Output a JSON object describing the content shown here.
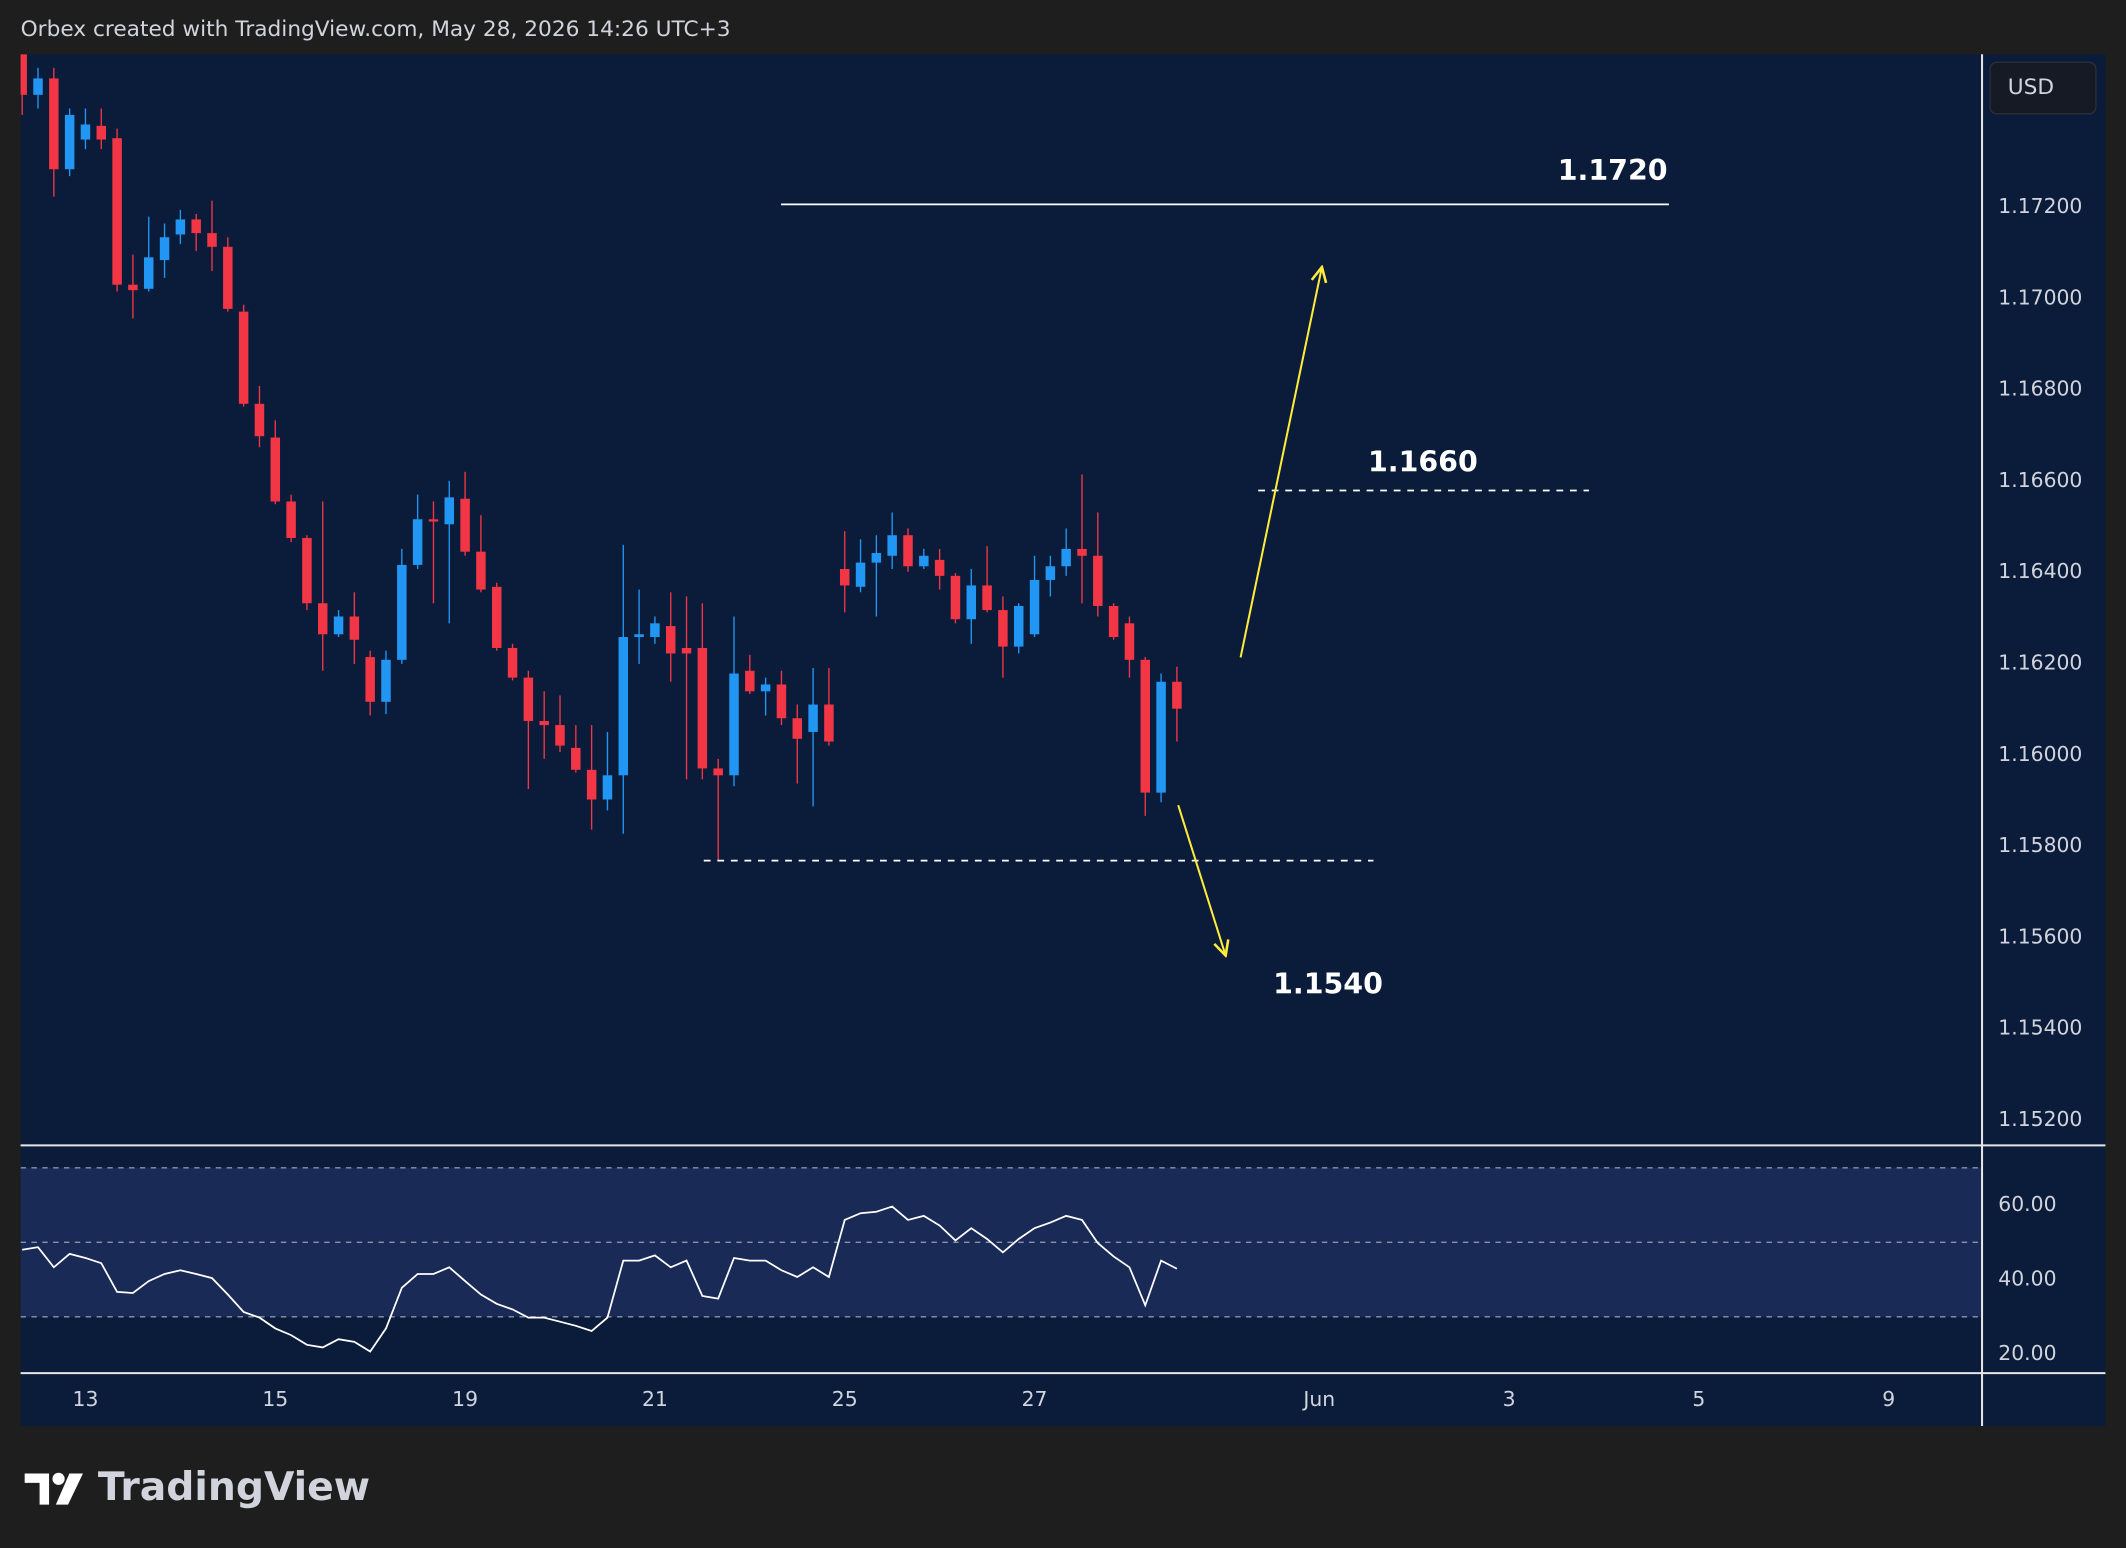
{
  "header": {
    "credit": "Orbex created with TradingView.com, May 28, 2026 14:26 UTC+3",
    "logo": "TradingView"
  },
  "chart_data": [
    {
      "type": "candlestick",
      "currency": "USD",
      "up_color": "#2196f3",
      "down_color": "#f23645",
      "xlim": [
        -0.1,
        123.9
      ],
      "ylim": [
        1.15144,
        1.17535
      ],
      "yticks": [
        {
          "value": 1.172,
          "label": "1.17200"
        },
        {
          "value": 1.17,
          "label": "1.17000"
        },
        {
          "value": 1.168,
          "label": "1.16800"
        },
        {
          "value": 1.166,
          "label": "1.16600"
        },
        {
          "value": 1.164,
          "label": "1.16400"
        },
        {
          "value": 1.162,
          "label": "1.16200"
        },
        {
          "value": 1.16,
          "label": "1.16000"
        },
        {
          "value": 1.158,
          "label": "1.15800"
        },
        {
          "value": 1.156,
          "label": "1.15600"
        },
        {
          "value": 1.154,
          "label": "1.15400"
        },
        {
          "value": 1.152,
          "label": "1.15200"
        }
      ],
      "levels": [
        {
          "value": 1.17206,
          "style": "solid"
        },
        {
          "value": 1.16579,
          "style": "dashed"
        },
        {
          "value": 1.15768,
          "style": "dashed"
        }
      ],
      "annotations": [
        "1.1720",
        "1.1660",
        "1.1540"
      ],
      "open": [
        1.17535,
        1.17446,
        1.17482,
        1.17283,
        1.17348,
        1.17378,
        1.17351,
        1.1703,
        1.17021,
        1.17084,
        1.1714,
        1.17173,
        1.17143,
        1.17113,
        1.16971,
        1.16769,
        1.16695,
        1.16555,
        1.16475,
        1.16332,
        1.16264,
        1.16303,
        1.16214,
        1.16116,
        1.16208,
        1.16416,
        1.16516,
        1.16505,
        1.16561,
        1.16445,
        1.16368,
        1.16234,
        1.16169,
        1.16074,
        1.16065,
        1.16015,
        1.15967,
        1.15902,
        1.15955,
        1.16258,
        1.16258,
        1.16282,
        1.16234,
        1.16234,
        1.1597,
        1.15955,
        1.16184,
        1.16139,
        1.16154,
        1.1608,
        1.1605,
        1.1611,
        1.16407,
        1.16368,
        1.16421,
        1.16436,
        1.16481,
        1.16413,
        1.16427,
        1.16392,
        1.16297,
        1.16371,
        1.16317,
        1.16237,
        1.16264,
        1.16383,
        1.16413,
        1.16451,
        1.16436,
        1.16326,
        1.16288,
        1.16208,
        1.15917,
        1.1616
      ],
      "high": [
        1.17535,
        1.17505,
        1.17505,
        1.17416,
        1.17416,
        1.17416,
        1.17372,
        1.17096,
        1.17179,
        1.17164,
        1.17194,
        1.17185,
        1.17214,
        1.17134,
        1.16986,
        1.16808,
        1.16733,
        1.1657,
        1.16481,
        1.16555,
        1.16317,
        1.16356,
        1.16228,
        1.16228,
        1.16451,
        1.1657,
        1.16555,
        1.166,
        1.1662,
        1.16525,
        1.16377,
        1.16243,
        1.16184,
        1.16139,
        1.1613,
        1.16065,
        1.16065,
        1.1605,
        1.1646,
        1.16362,
        1.16303,
        1.16356,
        1.16347,
        1.16332,
        1.15991,
        1.16303,
        1.16219,
        1.16169,
        1.16184,
        1.1611,
        1.1619,
        1.1619,
        1.1649,
        1.16472,
        1.16481,
        1.16531,
        1.16496,
        1.16451,
        1.16451,
        1.16398,
        1.16407,
        1.16457,
        1.16347,
        1.16332,
        1.16436,
        1.16436,
        1.16496,
        1.16614,
        1.16531,
        1.16332,
        1.16303,
        1.16214,
        1.16178,
        1.16193
      ],
      "low": [
        1.17402,
        1.17416,
        1.17223,
        1.17268,
        1.17327,
        1.17327,
        1.17015,
        1.16956,
        1.17015,
        1.17045,
        1.17119,
        1.17104,
        1.1706,
        1.16971,
        1.16763,
        1.16674,
        1.16549,
        1.16466,
        1.16317,
        1.16184,
        1.16258,
        1.16199,
        1.16086,
        1.16089,
        1.16199,
        1.16407,
        1.16332,
        1.16288,
        1.16436,
        1.16356,
        1.16228,
        1.16163,
        1.15925,
        1.15991,
        1.16006,
        1.15961,
        1.15836,
        1.15878,
        1.15827,
        1.16199,
        1.16243,
        1.1616,
        1.15946,
        1.15946,
        1.15768,
        1.15931,
        1.16133,
        1.16086,
        1.16065,
        1.15937,
        1.15887,
        1.1602,
        1.16312,
        1.16356,
        1.16303,
        1.16407,
        1.16401,
        1.16407,
        1.16362,
        1.16288,
        1.16243,
        1.16312,
        1.16169,
        1.16222,
        1.16258,
        1.16347,
        1.16392,
        1.16332,
        1.16303,
        1.16252,
        1.16169,
        1.15866,
        1.15896,
        1.16029
      ],
      "close": [
        1.17446,
        1.17482,
        1.17283,
        1.17402,
        1.17381,
        1.17348,
        1.1703,
        1.17018,
        1.1709,
        1.17134,
        1.17173,
        1.17143,
        1.17113,
        1.16977,
        1.16769,
        1.16698,
        1.16555,
        1.16475,
        1.16332,
        1.16264,
        1.16303,
        1.16252,
        1.16116,
        1.16208,
        1.16416,
        1.16516,
        1.16511,
        1.16564,
        1.16445,
        1.16362,
        1.16234,
        1.16169,
        1.16074,
        1.16065,
        1.1602,
        1.15967,
        1.15902,
        1.15955,
        1.16258,
        1.16264,
        1.16288,
        1.16222,
        1.16222,
        1.1597,
        1.15955,
        1.16178,
        1.16139,
        1.16154,
        1.1608,
        1.16035,
        1.1611,
        1.16029,
        1.16371,
        1.16421,
        1.16442,
        1.16481,
        1.16413,
        1.16436,
        1.16392,
        1.16297,
        1.16371,
        1.16317,
        1.16237,
        1.16326,
        1.16383,
        1.16413,
        1.16451,
        1.16436,
        1.16326,
        1.16258,
        1.16208,
        1.15917,
        1.1616,
        1.16101
      ]
    },
    {
      "type": "line",
      "color": "#ffffff",
      "band_color": "#1d2d5c",
      "xlim": [
        -0.1,
        123.9
      ],
      "ylim": [
        14.9,
        76
      ],
      "xticks": [
        {
          "value": 4,
          "label": "13"
        },
        {
          "value": 16,
          "label": "15"
        },
        {
          "value": 28,
          "label": "19"
        },
        {
          "value": 40,
          "label": "21"
        },
        {
          "value": 52,
          "label": "25"
        },
        {
          "value": 64,
          "label": "27"
        },
        {
          "value": 82,
          "label": "Jun"
        },
        {
          "value": 94,
          "label": "3"
        },
        {
          "value": 106,
          "label": "5"
        },
        {
          "value": 118,
          "label": "9"
        }
      ],
      "yticks": [
        {
          "value": 60,
          "label": "60.00"
        },
        {
          "value": 40,
          "label": "40.00"
        },
        {
          "value": 20,
          "label": "20.00"
        }
      ],
      "bands": [
        70,
        50,
        30
      ],
      "values": [
        48.0,
        48.7,
        43.3,
        46.9,
        45.8,
        44.4,
        36.7,
        36.4,
        39.6,
        41.5,
        42.5,
        41.5,
        40.4,
        36.0,
        31.3,
        29.8,
        26.9,
        25.1,
        22.5,
        21.8,
        24.0,
        23.3,
        20.7,
        26.9,
        37.8,
        41.5,
        41.5,
        43.3,
        39.6,
        36.0,
        33.5,
        32.0,
        29.8,
        29.8,
        28.7,
        27.6,
        26.2,
        29.8,
        45.1,
        45.1,
        46.5,
        43.3,
        45.1,
        35.6,
        34.9,
        45.8,
        45.1,
        45.1,
        42.5,
        40.7,
        43.3,
        40.7,
        56.0,
        57.8,
        58.2,
        59.6,
        56.0,
        57.1,
        54.5,
        50.5,
        53.8,
        50.9,
        47.3,
        50.9,
        53.8,
        55.3,
        57.1,
        56.0,
        49.8,
        46.2,
        43.3,
        33.1,
        45.1,
        42.9
      ]
    }
  ]
}
